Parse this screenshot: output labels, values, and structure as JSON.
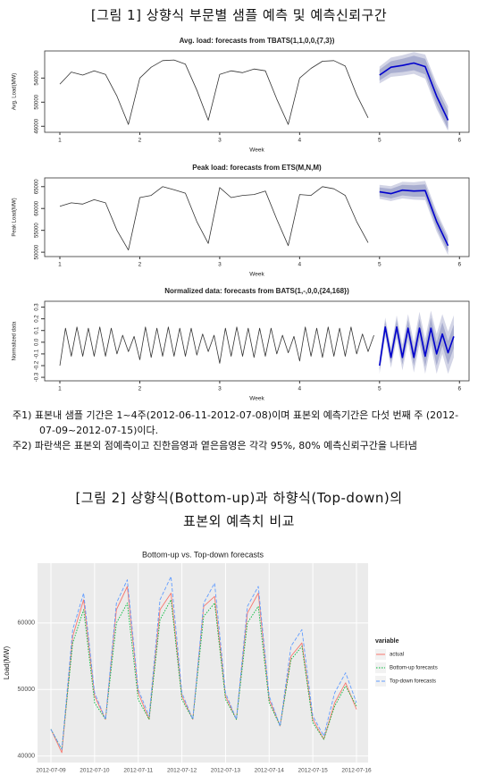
{
  "figure1_title": "[그림 1] 상향식 부문별 샘플 예측 및 예측신뢰구간",
  "chart_data": [
    {
      "type": "line",
      "title": "Avg. load: forecasts from TBATS(1,1,0,0,{7,3})",
      "x_label": "Week",
      "y_label": "Avg. Load(MW)",
      "xlim": [
        0.81,
        6.12
      ],
      "xticks": [
        1,
        2,
        3,
        4,
        5,
        6
      ],
      "ylim": [
        45000,
        58500
      ],
      "yticks": [
        46000,
        50000,
        54000
      ],
      "x": [
        1,
        1.143,
        1.286,
        1.429,
        1.571,
        1.714,
        1.857,
        2,
        2.143,
        2.286,
        2.429,
        2.571,
        2.714,
        2.857,
        3,
        3.143,
        3.286,
        3.429,
        3.571,
        3.714,
        3.857,
        4,
        4.143,
        4.286,
        4.429,
        4.571,
        4.714,
        4.857
      ],
      "values": [
        53000,
        55000,
        54500,
        55200,
        54600,
        51000,
        46300,
        54000,
        55800,
        56900,
        57000,
        56300,
        52000,
        47000,
        54600,
        55200,
        54900,
        55500,
        55200,
        50500,
        46300,
        54000,
        55600,
        56800,
        56900,
        56000,
        51200,
        47400
      ],
      "color": "#333333",
      "forecast": {
        "x": [
          5,
          5.143,
          5.286,
          5.429,
          5.571,
          5.714,
          5.857
        ],
        "values": [
          54500,
          55800,
          56100,
          56500,
          55900,
          51000,
          47000
        ],
        "color": "#0000cd",
        "lower80": [
          53600,
          54800,
          55000,
          55300,
          54600,
          49600,
          45500
        ],
        "upper80": [
          55400,
          56800,
          57200,
          57700,
          57200,
          52400,
          48500
        ],
        "lower95": [
          53100,
          54200,
          54400,
          54700,
          53900,
          48900,
          45200
        ],
        "upper95": [
          55900,
          57400,
          57800,
          58300,
          57900,
          53100,
          49300
        ],
        "color80": "#a9aed0",
        "color95": "#d3d5e6"
      }
    },
    {
      "type": "line",
      "title": "Peak load: forecasts from ETS(M,N,M)",
      "x_label": "Week",
      "y_label": "Peak Load(MW)",
      "xlim": [
        0.81,
        6.12
      ],
      "xticks": [
        1,
        2,
        3,
        4,
        5,
        6
      ],
      "ylim": [
        49000,
        67000
      ],
      "yticks": [
        50000,
        55000,
        60000,
        65000
      ],
      "x": [
        1,
        1.143,
        1.286,
        1.429,
        1.571,
        1.714,
        1.857,
        2,
        2.143,
        2.286,
        2.429,
        2.571,
        2.714,
        2.857,
        3,
        3.143,
        3.286,
        3.429,
        3.571,
        3.714,
        3.857,
        4,
        4.143,
        4.286,
        4.429,
        4.571,
        4.714,
        4.857
      ],
      "values": [
        60500,
        61300,
        61000,
        62000,
        61300,
        55000,
        50500,
        62500,
        63000,
        65000,
        64300,
        63500,
        57000,
        52000,
        64800,
        62500,
        63000,
        63200,
        64000,
        57500,
        51500,
        63200,
        63000,
        65000,
        64500,
        63000,
        57000,
        52200
      ],
      "color": "#333333",
      "forecast": {
        "x": [
          5,
          5.143,
          5.286,
          5.429,
          5.571,
          5.714,
          5.857
        ],
        "values": [
          63800,
          63400,
          64200,
          64000,
          64100,
          57000,
          51500
        ],
        "color": "#0000cd",
        "lower80": [
          62800,
          62300,
          63000,
          62700,
          62700,
          55500,
          50000
        ],
        "upper80": [
          64800,
          64500,
          65400,
          65300,
          65500,
          58500,
          53000
        ],
        "lower95": [
          62200,
          61700,
          62300,
          62000,
          61900,
          54700,
          49300
        ],
        "upper95": [
          65400,
          65100,
          66100,
          66000,
          66300,
          59300,
          53700
        ],
        "color80": "#a9aed0",
        "color95": "#d3d5e6"
      }
    },
    {
      "type": "line",
      "title": "Normalized data: forecasts from BATS(1,-,0,0,{24,168})",
      "x_label": "Week",
      "y_label": "Normalized data",
      "xlim": [
        0.81,
        6.12
      ],
      "xticks": [
        1,
        2,
        3,
        4,
        5,
        6
      ],
      "ylim": [
        -0.33,
        0.35
      ],
      "yticks": [
        -0.3,
        -0.2,
        -0.1,
        {
          "value": 0,
          "label": "0.0"
        },
        0.1,
        0.2,
        0.3
      ],
      "x": [
        1,
        1.071,
        1.143,
        1.214,
        1.286,
        1.357,
        1.429,
        1.5,
        1.571,
        1.643,
        1.714,
        1.786,
        1.857,
        1.929,
        2,
        2.071,
        2.143,
        2.214,
        2.286,
        2.357,
        2.429,
        2.5,
        2.571,
        2.643,
        2.714,
        2.786,
        2.857,
        2.929,
        3,
        3.071,
        3.143,
        3.214,
        3.286,
        3.357,
        3.429,
        3.5,
        3.571,
        3.643,
        3.714,
        3.786,
        3.857,
        3.929,
        4,
        4.071,
        4.143,
        4.214,
        4.286,
        4.357,
        4.429,
        4.5,
        4.571,
        4.643,
        4.714,
        4.786,
        4.857,
        4.929
      ],
      "values": [
        -0.2,
        0.12,
        -0.12,
        0.13,
        -0.12,
        0.12,
        -0.12,
        0.13,
        -0.12,
        0.12,
        -0.1,
        0.06,
        -0.08,
        0.05,
        -0.15,
        0.13,
        -0.13,
        0.12,
        -0.12,
        0.13,
        -0.12,
        0.12,
        -0.12,
        0.12,
        -0.11,
        0.07,
        -0.08,
        0.06,
        -0.18,
        0.12,
        -0.12,
        0.13,
        -0.12,
        0.12,
        -0.13,
        0.12,
        -0.12,
        0.12,
        -0.1,
        0.06,
        -0.09,
        0.05,
        -0.16,
        0.13,
        -0.12,
        0.12,
        -0.13,
        0.13,
        -0.12,
        0.12,
        -0.12,
        0.13,
        -0.1,
        0.07,
        -0.08,
        0.06
      ],
      "color": "#333333",
      "forecast": {
        "x": [
          5,
          5.071,
          5.143,
          5.214,
          5.286,
          5.357,
          5.429,
          5.5,
          5.571,
          5.643,
          5.714,
          5.786,
          5.857,
          5.929
        ],
        "values": [
          -0.2,
          0.13,
          -0.13,
          0.13,
          -0.13,
          0.12,
          -0.13,
          0.12,
          -0.12,
          0.12,
          -0.1,
          0.07,
          -0.09,
          0.05
        ],
        "color": "#0000cd",
        "lower80": [
          -0.24,
          0.08,
          -0.18,
          0.07,
          -0.19,
          0.05,
          -0.2,
          0.04,
          -0.21,
          0.03,
          -0.2,
          -0.03,
          -0.19,
          -0.05
        ],
        "upper80": [
          -0.16,
          0.18,
          -0.08,
          0.19,
          -0.07,
          0.19,
          -0.06,
          0.2,
          -0.03,
          0.21,
          0,
          0.17,
          0.01,
          0.15
        ],
        "lower95": [
          -0.27,
          0.05,
          -0.22,
          0.03,
          -0.24,
          0,
          -0.26,
          -0.02,
          -0.27,
          -0.03,
          -0.27,
          -0.1,
          -0.27,
          -0.13
        ],
        "upper95": [
          -0.13,
          0.21,
          -0.04,
          0.23,
          -0.02,
          0.24,
          0,
          0.26,
          0.03,
          0.27,
          0.07,
          0.24,
          0.09,
          0.23
        ],
        "color80": "#a9aed0",
        "color95": "#d3d5e6"
      }
    },
    {
      "type": "line",
      "title": "Bottom-up vs. Top-down forecasts",
      "y_label": "Load(MW)",
      "grid": true,
      "panel_color": "#ebebeb",
      "ylim": [
        39000,
        69000
      ],
      "yticks": [
        40000,
        50000,
        60000
      ],
      "legend_title": "variable",
      "categories": [
        "2012-07-09",
        null,
        null,
        null,
        "2012-07-10",
        null,
        null,
        null,
        "2012-07-11",
        null,
        null,
        null,
        "2012-07-12",
        null,
        null,
        null,
        "2012-07-13",
        null,
        null,
        null,
        "2012-07-14",
        null,
        null,
        null,
        "2012-07-15",
        null,
        null,
        null,
        "2012-07-16"
      ],
      "series": [
        {
          "name": "actual",
          "color": "#f8766d",
          "dash": "solid",
          "values": [
            44000,
            40500,
            58000,
            63500,
            49000,
            45500,
            62000,
            65500,
            49500,
            45500,
            62000,
            64500,
            49000,
            45500,
            62500,
            64000,
            49000,
            45500,
            61500,
            64500,
            48500,
            44500,
            55000,
            57000,
            45500,
            42500,
            48000,
            51000,
            47000
          ]
        },
        {
          "name": "Bottom-up forecasts",
          "color": "#00ba38",
          "dash": "dotted",
          "values": [
            44000,
            41000,
            57000,
            62000,
            48000,
            45500,
            60000,
            63000,
            48500,
            45500,
            60500,
            63500,
            48500,
            45500,
            61000,
            63000,
            48500,
            45500,
            60000,
            62500,
            48000,
            44500,
            54500,
            56500,
            45000,
            42500,
            47500,
            50500,
            47500
          ]
        },
        {
          "name": "Top-down forecasts",
          "color": "#619cff",
          "dash": "dashed",
          "values": [
            44000,
            41000,
            59000,
            64500,
            49500,
            45500,
            63000,
            66500,
            50000,
            46000,
            63500,
            67000,
            49500,
            45500,
            63000,
            66000,
            49500,
            45500,
            62500,
            65500,
            49000,
            44500,
            56500,
            59000,
            46000,
            43000,
            49500,
            52500,
            48000
          ]
        }
      ]
    }
  ],
  "notes": [
    "주1) 표본내 샘플 기간은 1~4주(2012-06-11-2012-07-08)이며 표본외 예측기간은 다섯 번째 주 (2012-07-09~2012-07-15)이다.",
    "주2) 파란색은 표본외 점예측이고 진한음영과 옅은음영은 각각 95%, 80% 예측신뢰구간을 나타냄"
  ],
  "figure2_title": [
    "[그림 2] 상향식(Bottom-up)과 하향식(Top-down)의",
    "표본외 예측치 비교"
  ]
}
